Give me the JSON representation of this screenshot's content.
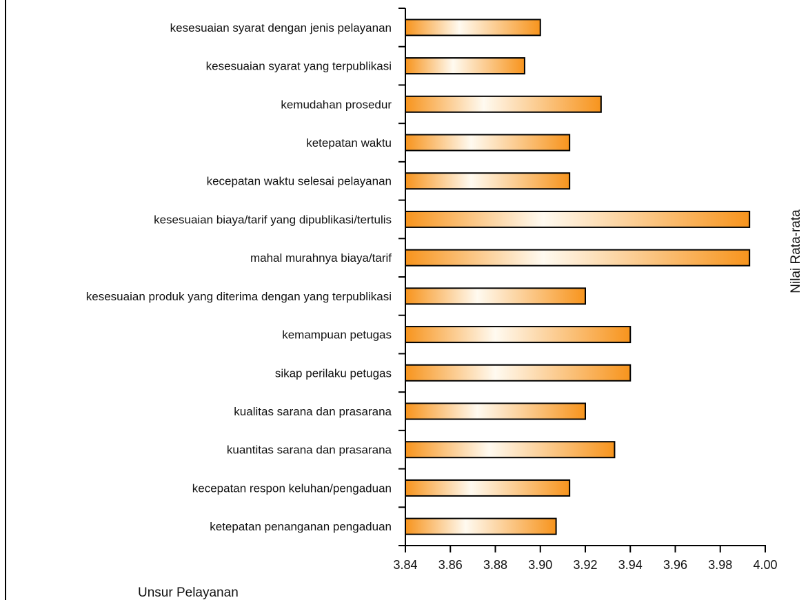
{
  "chart_data": {
    "type": "bar",
    "orientation": "horizontal",
    "categories": [
      "kesesuaian syarat dengan jenis pelayanan",
      "kesesuaian syarat yang terpublikasi",
      "kemudahan prosedur",
      "ketepatan waktu",
      "kecepatan waktu selesai pelayanan",
      "kesesuaian biaya/tarif yang dipublikasi/tertulis",
      "mahal murahnya biaya/tarif",
      "kesesuaian produk yang diterima dengan yang terpublikasi",
      "kemampuan petugas",
      "sikap perilaku petugas",
      "kualitas sarana dan prasarana",
      "kuantitas sarana dan prasarana",
      "kecepatan respon keluhan/pengaduan",
      "ketepatan penanganan pengaduan"
    ],
    "values": [
      3.9,
      3.893,
      3.927,
      3.913,
      3.913,
      3.993,
      3.993,
      3.92,
      3.94,
      3.94,
      3.92,
      3.933,
      3.913,
      3.907
    ],
    "xlim": [
      3.84,
      4.0
    ],
    "ticks": [
      "3.84",
      "3.86",
      "3.88",
      "3.90",
      "3.92",
      "3.94",
      "3.96",
      "3.98",
      "4.00"
    ],
    "category_axis_title": "Unsur Pelayanan",
    "value_axis_title": "Nilai Rata-rata",
    "grid": false,
    "legend": "none",
    "bar_color": "#f7941d",
    "bar_highlight": "#fffaf0",
    "bar_edge": "#000000"
  }
}
